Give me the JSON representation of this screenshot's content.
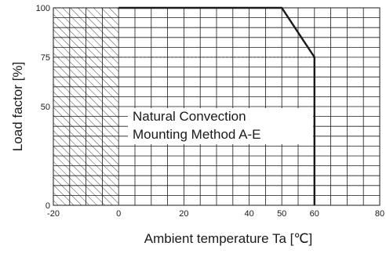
{
  "chart_data": {
    "type": "line",
    "title": "",
    "xlabel": "Ambient temperature Ta [℃]",
    "ylabel": "Load factor [%]",
    "xlim": [
      -20,
      80
    ],
    "ylim": [
      0,
      100
    ],
    "x_grid_step": 5,
    "y_grid_step": 5,
    "x_ticks": [
      -20,
      0,
      20,
      40,
      50,
      60,
      80
    ],
    "x_tick_labels": [
      "-20",
      "0",
      "20",
      "40",
      "50",
      "60",
      "80"
    ],
    "y_ticks": [
      0,
      50,
      75,
      100
    ],
    "y_tick_labels": [
      "0",
      "50",
      "75",
      "100"
    ],
    "grid": true,
    "series": [
      {
        "x": [
          0,
          50,
          60,
          60
        ],
        "y": [
          100,
          100,
          75,
          0
        ],
        "style": "solid-bold",
        "color": "#1a1a1a"
      }
    ],
    "reference_line": {
      "y": 75,
      "x_from": -20,
      "x_to": 60,
      "style": "dashed"
    },
    "hatched_region": {
      "x_from": -20,
      "x_to": 0,
      "y_from": 0,
      "y_to": 100
    },
    "annotations": [
      "Natural Convection",
      "Mounting Method A-E"
    ]
  }
}
